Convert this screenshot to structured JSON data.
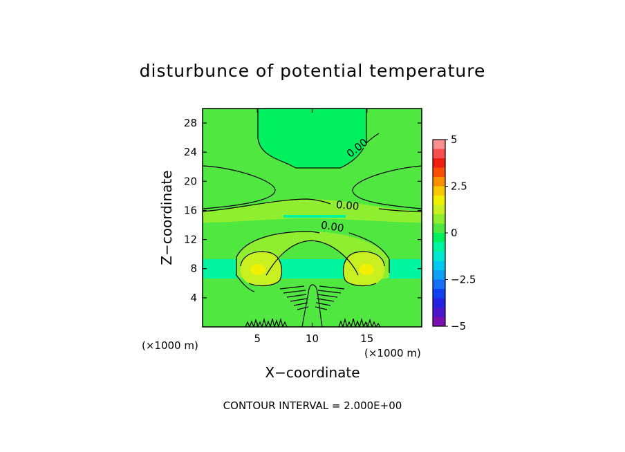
{
  "chart_data": {
    "type": "heatmap",
    "title": "disturbunce of potential temperature",
    "xlabel": "X−coordinate",
    "ylabel": "Z−coordinate",
    "x_unit": "(×1000 m)",
    "y_unit": "(×1000 m)",
    "xlim": [
      0,
      20
    ],
    "ylim": [
      0,
      30
    ],
    "x_ticks": [
      5,
      10,
      15
    ],
    "y_ticks": [
      4,
      8,
      12,
      16,
      20,
      24,
      28
    ],
    "contour_labels": [
      {
        "text": "0.00",
        "x": 14.3,
        "z": 24.2,
        "angle": -38
      },
      {
        "text": "0.00",
        "x": 13.2,
        "z": 16.2,
        "angle": 5
      },
      {
        "text": "0.00",
        "x": 11.8,
        "z": 13.3,
        "angle": 9
      }
    ],
    "colorbar": {
      "min": -5,
      "max": 5,
      "tick_labels": [
        "5",
        "2.5",
        "0",
        "−2.5",
        "−5"
      ],
      "tick_values": [
        5,
        2.5,
        0,
        -2.5,
        -5
      ],
      "levels": [
        {
          "lo": -5.0,
          "hi": -4.5,
          "color": "#7a0fb0"
        },
        {
          "lo": -4.5,
          "hi": -4.0,
          "color": "#4a18c8"
        },
        {
          "lo": -4.0,
          "hi": -3.5,
          "color": "#2222e0"
        },
        {
          "lo": -3.5,
          "hi": -3.0,
          "color": "#1040f0"
        },
        {
          "lo": -3.0,
          "hi": -2.5,
          "color": "#1570f5"
        },
        {
          "lo": -2.5,
          "hi": -2.0,
          "color": "#10a0f5"
        },
        {
          "lo": -2.0,
          "hi": -1.5,
          "color": "#00c8f0"
        },
        {
          "lo": -1.5,
          "hi": -1.0,
          "color": "#00e8d0"
        },
        {
          "lo": -1.0,
          "hi": -0.5,
          "color": "#00f5a0"
        },
        {
          "lo": -0.5,
          "hi": 0.0,
          "color": "#00f060"
        },
        {
          "lo": 0.0,
          "hi": 0.5,
          "color": "#50e840"
        },
        {
          "lo": 0.5,
          "hi": 1.0,
          "color": "#90ee30"
        },
        {
          "lo": 1.0,
          "hi": 1.5,
          "color": "#c8f020"
        },
        {
          "lo": 1.5,
          "hi": 2.0,
          "color": "#f0f000"
        },
        {
          "lo": 2.0,
          "hi": 2.5,
          "color": "#f8c800"
        },
        {
          "lo": 2.5,
          "hi": 3.0,
          "color": "#f89000"
        },
        {
          "lo": 3.0,
          "hi": 3.5,
          "color": "#f85000"
        },
        {
          "lo": 3.5,
          "hi": 4.0,
          "color": "#f02010"
        },
        {
          "lo": 4.0,
          "hi": 4.5,
          "color": "#f85050"
        },
        {
          "lo": 4.5,
          "hi": 5.0,
          "color": "#f89090"
        }
      ]
    }
  },
  "footer": {
    "contour_interval": "CONTOUR INTERVAL = 2.000E+00"
  }
}
